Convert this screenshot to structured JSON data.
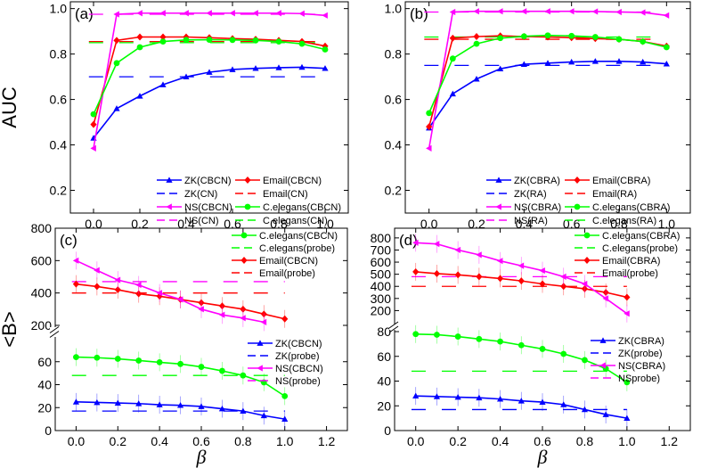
{
  "chart_data": [
    {
      "panel": "(a)",
      "type": "line",
      "ylabel": "AUC",
      "xlabel": "",
      "xlim": [
        -0.1,
        1.1
      ],
      "ylim": [
        0.1,
        1.03
      ],
      "xticks": [
        "0.0",
        "0.2",
        "0.4",
        "0.6",
        "0.8",
        "1.0"
      ],
      "xtick_values": [
        0,
        0.2,
        0.4,
        0.6,
        0.8,
        1.0
      ],
      "yticks": [
        "0.2",
        "0.4",
        "0.6",
        "0.8",
        "1.0"
      ],
      "ytick_values": [
        0.2,
        0.4,
        0.6,
        0.8,
        1.0
      ],
      "x": [
        0,
        0.1,
        0.2,
        0.3,
        0.4,
        0.5,
        0.6,
        0.7,
        0.8,
        0.9,
        1.0
      ],
      "series": [
        {
          "name": "ZK(CBCN)",
          "color": "#0000ff",
          "marker": "triangle-up",
          "values": [
            0.43,
            0.56,
            0.615,
            0.665,
            0.7,
            0.72,
            0.732,
            0.737,
            0.74,
            0.742,
            0.737
          ]
        },
        {
          "name": "Email(CBCN)",
          "color": "#ff0000",
          "marker": "diamond",
          "values": [
            0.49,
            0.86,
            0.875,
            0.875,
            0.875,
            0.872,
            0.868,
            0.865,
            0.86,
            0.855,
            0.835
          ]
        },
        {
          "name": "NS(CBCN)",
          "color": "#ff00ff",
          "marker": "triangle-left",
          "values": [
            0.385,
            0.975,
            0.98,
            0.98,
            0.98,
            0.98,
            0.98,
            0.98,
            0.98,
            0.978,
            0.97
          ]
        },
        {
          "name": "C.elegans(CBCN)",
          "color": "#00ff00",
          "marker": "circle",
          "values": [
            0.535,
            0.76,
            0.83,
            0.855,
            0.862,
            0.863,
            0.862,
            0.86,
            0.855,
            0.845,
            0.82
          ]
        }
      ],
      "baselines": [
        {
          "name": "ZK(CN)",
          "color": "#0000ff",
          "value": 0.7
        },
        {
          "name": "Email(CN)",
          "color": "#ff0000",
          "value": 0.855
        },
        {
          "name": "NS(CN)",
          "color": "#ff00ff",
          "value": 0.975
        },
        {
          "name": "C.elegans(CN)",
          "color": "#00ff00",
          "value": 0.85
        }
      ],
      "legend": "bottom-right"
    },
    {
      "panel": "(b)",
      "type": "line",
      "ylabel": "",
      "xlabel": "",
      "xlim": [
        -0.1,
        1.1
      ],
      "ylim": [
        0.1,
        1.03
      ],
      "xticks": [
        "0.0",
        "0.2",
        "0.4",
        "0.6",
        "0.8",
        "1.0"
      ],
      "xtick_values": [
        0,
        0.2,
        0.4,
        0.6,
        0.8,
        1.0
      ],
      "yticks": [
        "0.2",
        "0.4",
        "0.6",
        "0.8",
        "1.0"
      ],
      "ytick_values": [
        0.2,
        0.4,
        0.6,
        0.8,
        1.0
      ],
      "x": [
        0,
        0.1,
        0.2,
        0.3,
        0.4,
        0.5,
        0.6,
        0.7,
        0.8,
        0.9,
        1.0
      ],
      "series": [
        {
          "name": "ZK(CBRA)",
          "color": "#0000ff",
          "marker": "triangle-up",
          "values": [
            0.475,
            0.625,
            0.69,
            0.735,
            0.755,
            0.76,
            0.765,
            0.768,
            0.768,
            0.765,
            0.757
          ]
        },
        {
          "name": "Email(CBRA)",
          "color": "#ff0000",
          "marker": "diamond",
          "values": [
            0.48,
            0.87,
            0.877,
            0.88,
            0.877,
            0.875,
            0.872,
            0.868,
            0.865,
            0.855,
            0.835
          ]
        },
        {
          "name": "NS(CBRA)",
          "color": "#ff00ff",
          "marker": "triangle-left",
          "values": [
            0.385,
            0.985,
            0.988,
            0.988,
            0.988,
            0.988,
            0.988,
            0.987,
            0.985,
            0.983,
            0.97
          ]
        },
        {
          "name": "C.elegans(CBRA)",
          "color": "#00ff00",
          "marker": "circle",
          "values": [
            0.54,
            0.78,
            0.845,
            0.87,
            0.878,
            0.882,
            0.88,
            0.875,
            0.865,
            0.855,
            0.83
          ]
        }
      ],
      "baselines": [
        {
          "name": "ZK(RA)",
          "color": "#0000ff",
          "value": 0.75
        },
        {
          "name": "Email(RA)",
          "color": "#ff0000",
          "value": 0.865
        },
        {
          "name": "NS(RA)",
          "color": "#ff00ff",
          "value": 0.985
        },
        {
          "name": "C.elegans(RA)",
          "color": "#00ff00",
          "value": 0.875
        }
      ],
      "legend": "bottom-right"
    },
    {
      "panel": "(c)",
      "type": "line",
      "ylabel": "<B>",
      "xlabel": "β",
      "xlim": [
        -0.1,
        1.3
      ],
      "y_break": true,
      "ylim_lower": [
        0,
        80
      ],
      "ylim_upper": [
        200,
        800
      ],
      "xticks": [
        "0.0",
        "0.2",
        "0.4",
        "0.6",
        "0.8",
        "1.0",
        "1.2"
      ],
      "xtick_values": [
        0,
        0.2,
        0.4,
        0.6,
        0.8,
        1.0,
        1.2
      ],
      "yticks_lower": [
        "0",
        "20",
        "40",
        "60"
      ],
      "ytick_values_lower": [
        0,
        20,
        40,
        60
      ],
      "yticks_upper": [
        "200",
        "400",
        "600",
        "800"
      ],
      "ytick_values_upper": [
        200,
        400,
        600,
        800
      ],
      "x": [
        0,
        0.1,
        0.2,
        0.3,
        0.4,
        0.5,
        0.6,
        0.7,
        0.8,
        0.9,
        1.0
      ],
      "series": [
        {
          "name": "C.elegans(CBCN)",
          "color": "#00ff00",
          "marker": "circle",
          "segment": "lower",
          "values": [
            64,
            63.5,
            62.5,
            61,
            59.5,
            58,
            55.5,
            52,
            48,
            42,
            30
          ]
        },
        {
          "name": "Email(CBCN)",
          "color": "#ff0000",
          "marker": "diamond",
          "segment": "upper",
          "values": [
            455,
            440,
            420,
            395,
            380,
            360,
            340,
            320,
            300,
            270,
            240
          ]
        },
        {
          "name": "ZK(CBCN)",
          "color": "#0000ff",
          "marker": "triangle-up",
          "segment": "lower",
          "values": [
            25,
            24.5,
            24,
            23.5,
            22.5,
            22,
            21,
            19,
            17,
            13,
            10
          ]
        },
        {
          "name": "NS(CBCN)",
          "color": "#ff00ff",
          "marker": "triangle-left",
          "segment": "upper",
          "values": [
            600,
            540,
            480,
            450,
            400,
            360,
            300,
            265,
            245,
            220,
            null
          ]
        }
      ],
      "baselines": [
        {
          "name": "C.elegans(probe)",
          "color": "#00ff00",
          "segment": "lower",
          "value": 48
        },
        {
          "name": "Email(probe)",
          "color": "#ff0000",
          "segment": "upper",
          "value": 400
        },
        {
          "name": "ZK(probe)",
          "color": "#0000ff",
          "segment": "lower",
          "value": 17
        },
        {
          "name": "NS(probe)",
          "color": "#ff00ff",
          "segment": "upper",
          "value": 470
        }
      ],
      "legend_upper": "top-right",
      "legend_lower": "bottom-right"
    },
    {
      "panel": "(d)",
      "type": "line",
      "ylabel": "",
      "xlabel": "β",
      "xlim": [
        -0.1,
        1.3
      ],
      "y_break": true,
      "ylim_lower": [
        0,
        80
      ],
      "ylim_upper": [
        100,
        880
      ],
      "xticks": [
        "0.0",
        "0.2",
        "0.4",
        "0.6",
        "0.8",
        "1.0",
        "1.2"
      ],
      "xtick_values": [
        0,
        0.2,
        0.4,
        0.6,
        0.8,
        1.0,
        1.2
      ],
      "yticks_lower": [
        "0",
        "20",
        "40",
        "60",
        "80"
      ],
      "ytick_values_lower": [
        0,
        20,
        40,
        60,
        80
      ],
      "yticks_upper": [
        "200",
        "300",
        "400",
        "500",
        "600",
        "700",
        "800"
      ],
      "ytick_values_upper": [
        200,
        300,
        400,
        500,
        600,
        700,
        800
      ],
      "x": [
        0,
        0.1,
        0.2,
        0.3,
        0.4,
        0.5,
        0.6,
        0.7,
        0.8,
        0.9,
        1.0
      ],
      "series": [
        {
          "name": "C.elegans(CBRA)",
          "color": "#00ff00",
          "marker": "circle",
          "segment": "lower",
          "values": [
            78,
            77.5,
            76,
            74,
            72,
            69,
            66,
            62,
            57,
            50,
            39
          ]
        },
        {
          "name": "Email(CBRA)",
          "color": "#ff0000",
          "marker": "diamond",
          "segment": "upper",
          "values": [
            520,
            505,
            495,
            480,
            465,
            445,
            420,
            400,
            380,
            350,
            310
          ]
        },
        {
          "name": "ZK(CBRA)",
          "color": "#0000ff",
          "marker": "triangle-up",
          "segment": "lower",
          "values": [
            28,
            27.5,
            27,
            26.5,
            25.5,
            24,
            23,
            21,
            17,
            13,
            10
          ]
        },
        {
          "name": "NS(CBRA)",
          "color": "#ff00ff",
          "marker": "triangle-left",
          "segment": "upper",
          "values": [
            760,
            750,
            700,
            660,
            610,
            570,
            530,
            480,
            420,
            300,
            175
          ]
        }
      ],
      "baselines": [
        {
          "name": "C.elegans(probe)",
          "color": "#00ff00",
          "segment": "lower",
          "value": 48
        },
        {
          "name": "Email(probe)",
          "color": "#ff0000",
          "segment": "upper",
          "value": 400
        },
        {
          "name": "ZK(probe)",
          "color": "#0000ff",
          "segment": "lower",
          "value": 17
        },
        {
          "name": "NSprobe)",
          "color": "#ff00ff",
          "segment": "upper",
          "value": 480
        }
      ],
      "legend_upper": "top-right",
      "legend_lower": "bottom-right"
    }
  ]
}
